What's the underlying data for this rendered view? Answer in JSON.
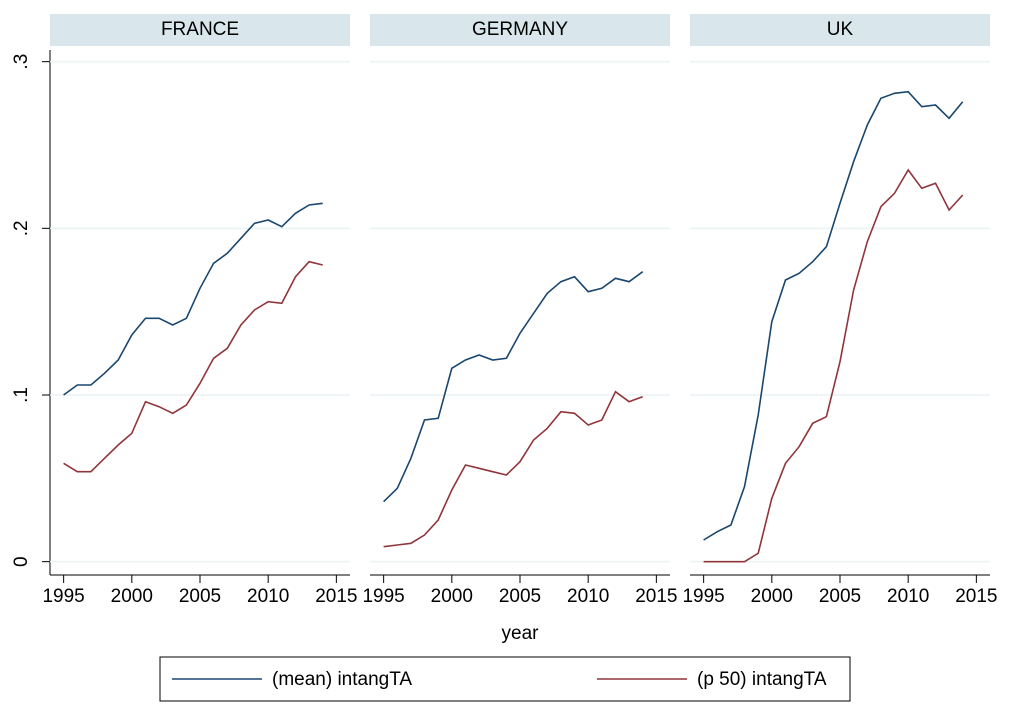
{
  "chart_data": {
    "type": "line",
    "xlabel": "year",
    "series": [
      {
        "name": "(mean) intangTA",
        "color": "#1a476f"
      },
      {
        "name": "(p 50) intangTA",
        "color": "#90353b"
      }
    ],
    "x": [
      1995,
      1996,
      1997,
      1998,
      1999,
      2000,
      2001,
      2002,
      2003,
      2004,
      2005,
      2006,
      2007,
      2008,
      2009,
      2010,
      2011,
      2012,
      2013,
      2014
    ],
    "xlim": [
      1994,
      2016
    ],
    "xticks": [
      1995,
      2000,
      2005,
      2010,
      2015
    ],
    "ylim": [
      -0.008,
      0.307
    ],
    "yticks": [
      0,
      {
        "value": 0.1,
        "label": ".1"
      },
      {
        "value": 0.2,
        "label": ".2"
      },
      {
        "value": 0.3,
        "label": ".3"
      }
    ],
    "grid": true,
    "panels": [
      {
        "title": "FRANCE",
        "values": [
          [
            0.1,
            0.106,
            0.106,
            0.113,
            0.121,
            0.136,
            0.146,
            0.146,
            0.142,
            0.146,
            0.164,
            0.179,
            0.185,
            0.194,
            0.203,
            0.205,
            0.201,
            0.209,
            0.214,
            0.215
          ],
          [
            0.059,
            0.054,
            0.054,
            0.062,
            0.07,
            0.077,
            0.096,
            0.093,
            0.089,
            0.094,
            0.107,
            0.122,
            0.128,
            0.142,
            0.151,
            0.156,
            0.155,
            0.171,
            0.18,
            0.178
          ]
        ]
      },
      {
        "title": "GERMANY",
        "values": [
          [
            0.036,
            0.044,
            0.062,
            0.085,
            0.086,
            0.116,
            0.121,
            0.124,
            0.121,
            0.122,
            0.137,
            0.149,
            0.161,
            0.168,
            0.171,
            0.162,
            0.164,
            0.17,
            0.168,
            0.174
          ],
          [
            0.009,
            0.01,
            0.011,
            0.016,
            0.025,
            0.043,
            0.058,
            0.056,
            0.054,
            0.052,
            0.06,
            0.073,
            0.08,
            0.09,
            0.089,
            0.082,
            0.085,
            0.102,
            0.096,
            0.099
          ]
        ]
      },
      {
        "title": "UK",
        "values": [
          [
            0.013,
            0.018,
            0.022,
            0.045,
            0.088,
            0.144,
            0.169,
            0.173,
            0.18,
            0.189,
            0.215,
            0.24,
            0.262,
            0.278,
            0.281,
            0.282,
            0.273,
            0.274,
            0.266,
            0.276
          ],
          [
            0,
            0,
            0,
            0,
            0.005,
            0.038,
            0.059,
            0.069,
            0.083,
            0.087,
            0.12,
            0.163,
            0.192,
            0.213,
            0.221,
            0.235,
            0.224,
            0.227,
            0.211,
            0.22
          ]
        ]
      }
    ]
  }
}
